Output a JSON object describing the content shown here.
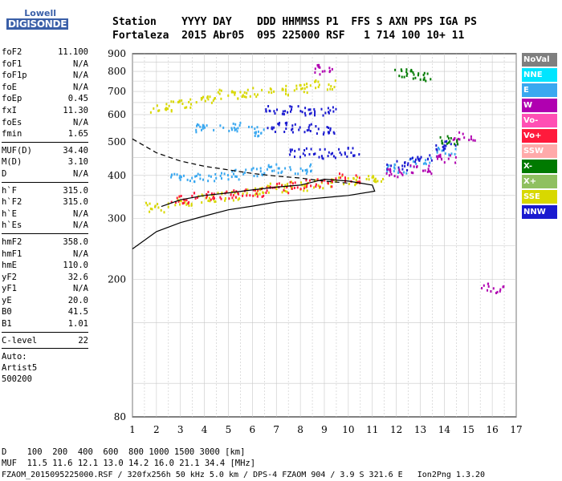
{
  "logo": {
    "line1": "Lowell",
    "line2": "DIGISONDE"
  },
  "header": {
    "line1": "Station    YYYY DAY    DDD HHMMSS P1  FFS S AXN PPS IGA PS",
    "line2": "Fortaleza  2015 Abr05  095 225000 RSF   1 714 100 10+ 11"
  },
  "params": [
    {
      "k": "foF2",
      "v": "11.100"
    },
    {
      "k": "foF1",
      "v": "N/A"
    },
    {
      "k": "foF1p",
      "v": "N/A"
    },
    {
      "k": "foE",
      "v": "N/A"
    },
    {
      "k": "foEp",
      "v": "0.45"
    },
    {
      "k": "fxI",
      "v": "11.30"
    },
    {
      "k": "foEs",
      "v": "N/A"
    },
    {
      "k": "fmin",
      "v": "1.65"
    },
    {
      "sep": true
    },
    {
      "k": "MUF(D)",
      "v": "34.40"
    },
    {
      "k": "M(D)",
      "v": "3.10"
    },
    {
      "k": "D",
      "v": "N/A"
    },
    {
      "sep": true
    },
    {
      "k": "h`F",
      "v": "315.0"
    },
    {
      "k": "h`F2",
      "v": "315.0"
    },
    {
      "k": "h`E",
      "v": "N/A"
    },
    {
      "k": "h`Es",
      "v": "N/A"
    },
    {
      "sep": true
    },
    {
      "k": "hmF2",
      "v": "358.0"
    },
    {
      "k": "hmF1",
      "v": "N/A"
    },
    {
      "k": "hmE",
      "v": "110.0"
    },
    {
      "k": "yF2",
      "v": "32.6"
    },
    {
      "k": "yF1",
      "v": "N/A"
    },
    {
      "k": "yE",
      "v": "20.0"
    },
    {
      "k": "B0",
      "v": "41.5"
    },
    {
      "k": "B1",
      "v": "1.01"
    },
    {
      "sep": true
    },
    {
      "k": "C-level",
      "v": "22"
    },
    {
      "sep": true
    }
  ],
  "auto": {
    "line1": "Auto:",
    "line2": "Artist5",
    "line3": "500200"
  },
  "legend": [
    {
      "label": "NoVal",
      "color": "#7f7f7f"
    },
    {
      "label": "NNE",
      "color": "#00e5ff"
    },
    {
      "label": "E",
      "color": "#3aa8f0"
    },
    {
      "label": "W",
      "color": "#b000b0"
    },
    {
      "label": "Vo-",
      "color": "#ff4fb4"
    },
    {
      "label": "Vo+",
      "color": "#ff1a3c"
    },
    {
      "label": "SSW",
      "color": "#ffaaaa"
    },
    {
      "label": "X-",
      "color": "#007a00"
    },
    {
      "label": "X+",
      "color": "#8fc060"
    },
    {
      "label": "SSE",
      "color": "#d8d800"
    },
    {
      "label": "NNW",
      "color": "#1a1ad0"
    }
  ],
  "bottom": {
    "line1": "D    100  200  400  600  800 1000 1500 3000 [km]",
    "line2": "MUF  11.5 11.6 12.1 13.0 14.2 16.0 21.1 34.4 [MHz]",
    "line3": "FZAOM_2015095225000.RSF / 320fx256h 50 kHz 5.0 km / DPS-4 FZAOM 904 / 3.9 S 321.6 E   Ion2Png 1.3.20"
  },
  "chart_data": {
    "type": "scatter",
    "x": {
      "min": 1,
      "max": 17,
      "ticks": [
        1,
        2,
        3,
        4,
        5,
        6,
        7,
        8,
        9,
        10,
        11,
        12,
        13,
        14,
        15,
        16,
        17
      ],
      "unit": "MHz"
    },
    "y": {
      "min": 80,
      "max": 900,
      "ticks": [
        80,
        200,
        300,
        400,
        500,
        600,
        700,
        800,
        900
      ],
      "unit": "km",
      "scale": "log"
    },
    "tick_labels_x": [
      "1",
      "2",
      "3",
      "4",
      "5",
      "6",
      "7",
      "8",
      "9",
      "10",
      "11",
      "12",
      "13",
      "14",
      "15",
      "16",
      "17"
    ],
    "tick_labels_y": [
      "80",
      "200",
      "300",
      "400",
      "500",
      "600",
      "700",
      "800",
      "900"
    ],
    "traces": [
      {
        "name": "SSE",
        "color": "#d8d800",
        "points": [
          [
            2.2,
            630
          ],
          [
            3,
            650
          ],
          [
            4,
            670
          ],
          [
            5,
            690
          ],
          [
            6,
            700
          ],
          [
            7,
            710
          ],
          [
            8,
            720
          ],
          [
            9,
            735
          ],
          [
            2,
            325
          ],
          [
            3,
            340
          ],
          [
            4,
            345
          ],
          [
            5,
            350
          ],
          [
            6,
            360
          ],
          [
            7,
            370
          ],
          [
            8,
            375
          ],
          [
            9,
            380
          ],
          [
            10,
            390
          ],
          [
            11,
            395
          ]
        ]
      },
      {
        "name": "E",
        "color": "#3aa8f0",
        "points": [
          [
            4,
            550
          ],
          [
            5,
            555
          ],
          [
            6,
            540
          ],
          [
            3,
            400
          ],
          [
            4,
            395
          ],
          [
            5,
            405
          ],
          [
            6,
            410
          ],
          [
            7,
            420
          ],
          [
            8,
            420
          ],
          [
            12,
            420
          ],
          [
            13,
            440
          ],
          [
            14,
            470
          ]
        ]
      },
      {
        "name": "NNW",
        "color": "#1a1ad0",
        "points": [
          [
            7,
            620
          ],
          [
            8,
            620
          ],
          [
            9,
            615
          ],
          [
            7,
            555
          ],
          [
            8,
            550
          ],
          [
            9,
            545
          ],
          [
            8,
            470
          ],
          [
            9,
            465
          ],
          [
            10,
            470
          ],
          [
            12,
            430
          ],
          [
            13,
            450
          ],
          [
            14,
            490
          ]
        ]
      },
      {
        "name": "Vo+",
        "color": "#ff1a3c",
        "points": [
          [
            3,
            345
          ],
          [
            4,
            350
          ],
          [
            5,
            355
          ],
          [
            6,
            360
          ],
          [
            7,
            370
          ],
          [
            8,
            378
          ],
          [
            9,
            385
          ],
          [
            10,
            395
          ]
        ]
      },
      {
        "name": "W",
        "color": "#b000b0",
        "points": [
          [
            9,
            815
          ],
          [
            12,
            410
          ],
          [
            13,
            420
          ],
          [
            14,
            450
          ],
          [
            14.8,
            520
          ],
          [
            16,
            190
          ]
        ]
      },
      {
        "name": "X-",
        "color": "#007a00",
        "points": [
          [
            12.3,
            800
          ],
          [
            13,
            780
          ],
          [
            14.2,
            510
          ]
        ]
      }
    ],
    "curves": [
      {
        "name": "profile",
        "style": "solid",
        "points": [
          [
            1,
            245
          ],
          [
            2,
            275
          ],
          [
            3,
            292
          ],
          [
            4,
            305
          ],
          [
            5,
            318
          ],
          [
            6,
            326
          ],
          [
            7,
            335
          ],
          [
            8,
            340
          ],
          [
            9,
            345
          ],
          [
            10,
            350
          ],
          [
            11.1,
            360
          ],
          [
            11,
            375
          ],
          [
            10.5,
            380
          ],
          [
            10,
            385
          ],
          [
            9,
            390
          ],
          [
            8,
            375
          ],
          [
            7,
            370
          ],
          [
            6,
            363
          ],
          [
            5,
            356
          ],
          [
            4,
            350
          ],
          [
            3,
            340
          ],
          [
            2.2,
            325
          ]
        ]
      },
      {
        "name": "extrapolated",
        "style": "dashed",
        "points": [
          [
            1,
            510
          ],
          [
            2,
            465
          ],
          [
            3,
            440
          ],
          [
            4,
            425
          ],
          [
            5,
            415
          ],
          [
            6,
            405
          ],
          [
            7,
            398
          ],
          [
            8,
            393
          ],
          [
            9,
            385
          ],
          [
            10,
            380
          ]
        ]
      }
    ]
  }
}
